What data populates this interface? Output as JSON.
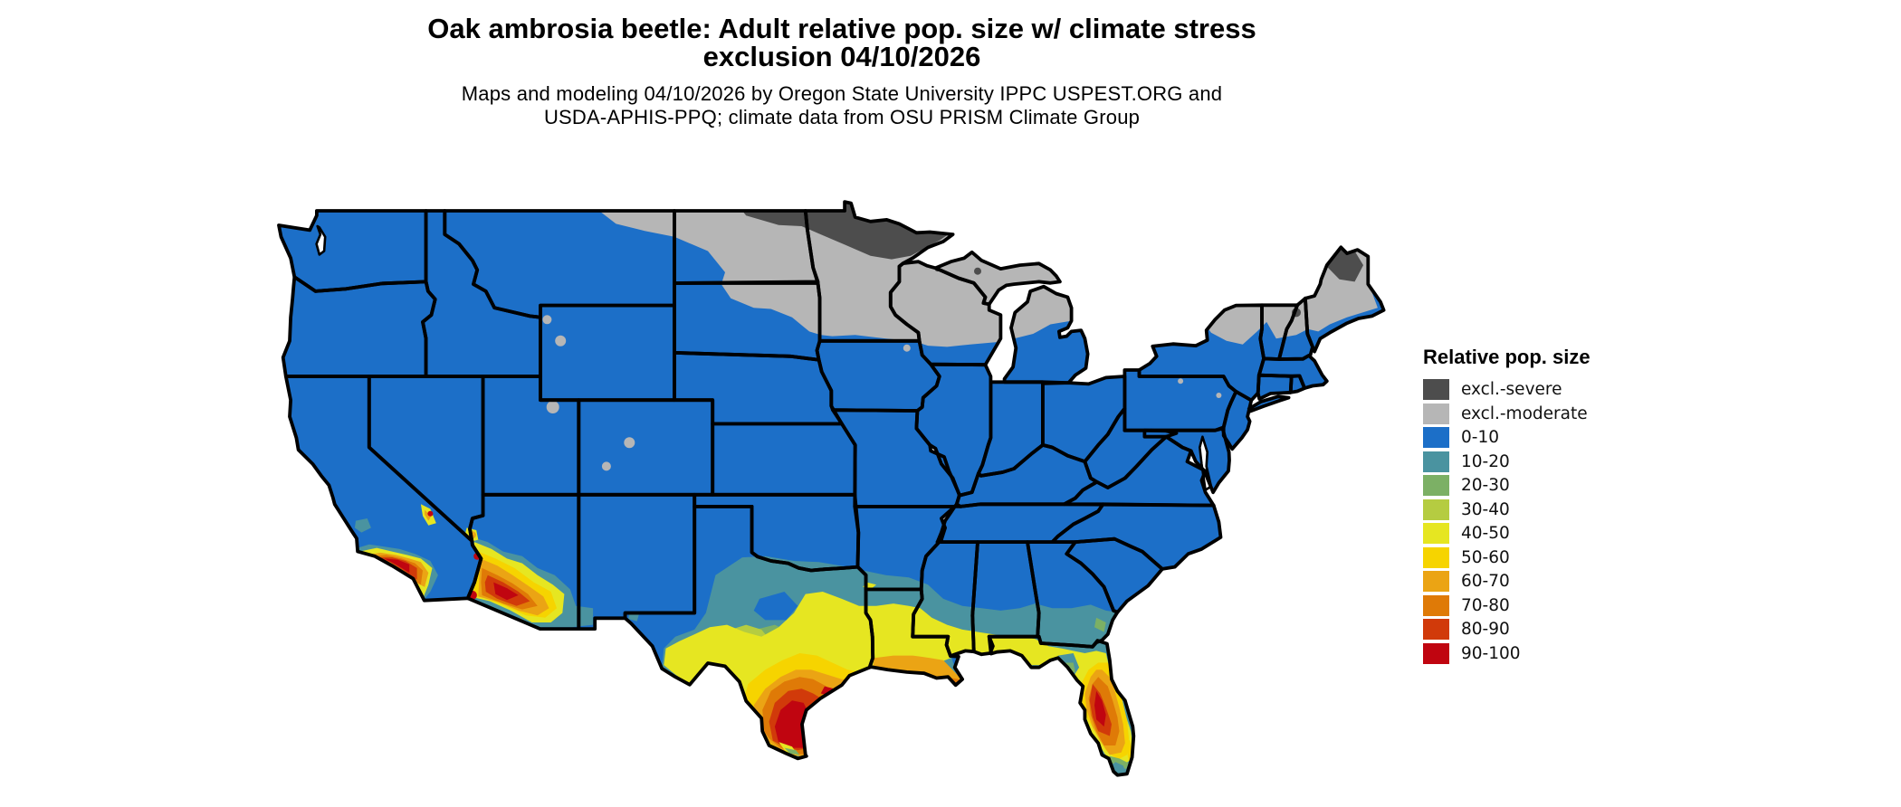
{
  "header": {
    "title_line1": "Oak ambrosia beetle: Adult relative pop. size w/ climate stress",
    "title_line2": "exclusion 04/10/2026",
    "subtitle_line1": "Maps and modeling 04/10/2026 by Oregon State University IPPC USPEST.ORG and",
    "subtitle_line2": "USDA-APHIS-PPQ; climate data from OSU PRISM Climate Group"
  },
  "legend": {
    "title": "Relative pop. size",
    "items": [
      {
        "key": "sev",
        "label": "excl.-severe",
        "color": "#4d4d4d"
      },
      {
        "key": "mod",
        "label": "excl.-moderate",
        "color": "#b6b6b6"
      },
      {
        "key": "b0",
        "label": "0-10",
        "color": "#1c6fc8"
      },
      {
        "key": "t10",
        "label": "10-20",
        "color": "#4a93a0"
      },
      {
        "key": "g20",
        "label": "20-30",
        "color": "#7cb065"
      },
      {
        "key": "yg30",
        "label": "30-40",
        "color": "#b5cc41"
      },
      {
        "key": "y40",
        "label": "40-50",
        "color": "#e6e621"
      },
      {
        "key": "go50",
        "label": "50-60",
        "color": "#f6d400"
      },
      {
        "key": "o60",
        "label": "60-70",
        "color": "#eba414"
      },
      {
        "key": "do70",
        "label": "70-80",
        "color": "#df7a07"
      },
      {
        "key": "r80",
        "label": "80-90",
        "color": "#d13a0a"
      },
      {
        "key": "rr90",
        "label": "90-100",
        "color": "#c00510"
      }
    ]
  },
  "map": {
    "background": "#ffffff",
    "border_color": "#000000",
    "base_key": "b0"
  },
  "chart_data": {
    "type": "choropleth-map",
    "title": "Oak ambrosia beetle: Adult relative pop. size w/ climate stress exclusion 04/10/2026",
    "legend_title": "Relative pop. size",
    "categories": [
      "excl.-severe",
      "excl.-moderate",
      "0-10",
      "10-20",
      "20-30",
      "30-40",
      "40-50",
      "50-60",
      "60-70",
      "70-80",
      "80-90",
      "90-100"
    ],
    "colors": [
      "#4d4d4d",
      "#b6b6b6",
      "#1c6fc8",
      "#4a93a0",
      "#7cb065",
      "#b5cc41",
      "#e6e621",
      "#f6d400",
      "#eba414",
      "#df7a07",
      "#d13a0a",
      "#c00510"
    ],
    "region_summary": {
      "excl.-severe": "northern Minnesota, northern North Dakota border strip, northern Maine",
      "excl.-moderate": "northern tier: NE Montana, North Dakota, NE South Dakota, Minnesota, Wisconsin, upper and northern lower Michigan, Adirondacks, northern New England, most of Maine, scattered Rocky Mountain patches",
      "0-10": "most of the contiguous US (base blue)",
      "10-20": "central Texas, southern Oklahoma/Arkansas strip, Deep South band (S Mississippi/Alabama/Georgia), Florida big bend and southern tips, SW fringes",
      "30-60": "yellow bands across southern Texas, Gulf Coast, north/central Florida, SW Arizona and S California rims",
      "60-100": "hottest: south Texas coast and lower Rio Grande, south-central Arizona, southern California coast/inland, Louisiana coast, central Florida peninsula"
    }
  }
}
